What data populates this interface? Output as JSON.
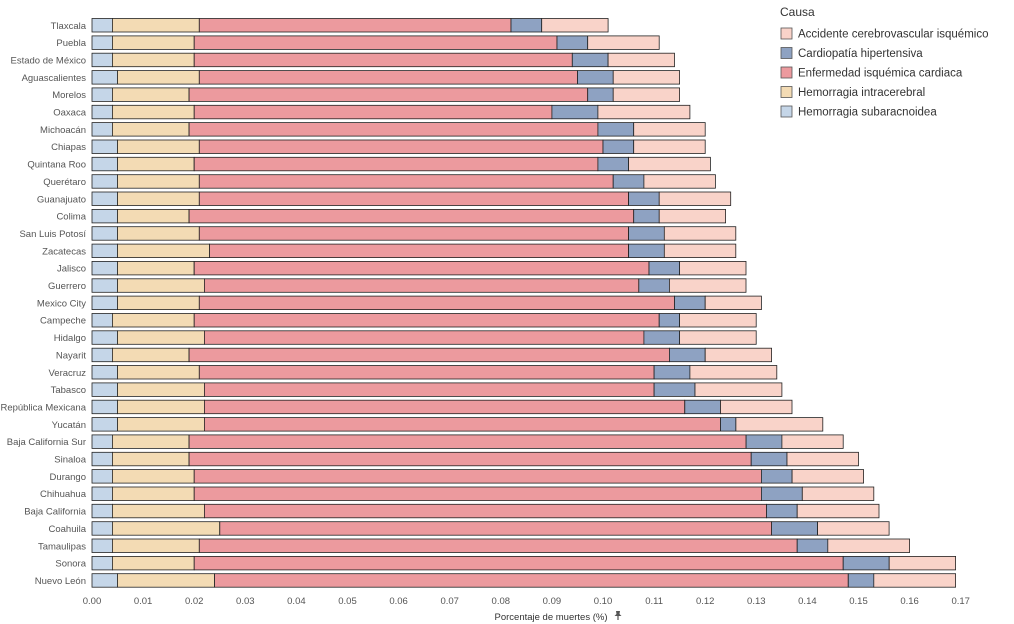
{
  "chart_data": {
    "type": "bar",
    "orientation": "horizontal",
    "stacked": true,
    "xlabel": "Porcentaje de muertes (%)",
    "pin_icon": "pin-icon",
    "xlim": [
      0,
      0.17
    ],
    "xticks": [
      "0.00",
      "0.01",
      "0.02",
      "0.03",
      "0.04",
      "0.05",
      "0.06",
      "0.07",
      "0.08",
      "0.09",
      "0.10",
      "0.11",
      "0.12",
      "0.13",
      "0.14",
      "0.15",
      "0.16",
      "0.17"
    ],
    "legend": {
      "title": "Causa",
      "position": "top-right",
      "items": [
        {
          "name": "Accidente cerebrovascular isquémico",
          "color": "#f9d3c9"
        },
        {
          "name": "Cardiopatía hipertensiva",
          "color": "#8ea2c2"
        },
        {
          "name": "Enfermedad isquémica cardiaca",
          "color": "#ec9a9e"
        },
        {
          "name": "Hemorragia intracerebral",
          "color": "#f3dbb4"
        },
        {
          "name": "Hemorragia subaracnoidea",
          "color": "#c5d6e8"
        }
      ]
    },
    "stack_order": [
      "Hemorragia subaracnoidea",
      "Hemorragia intracerebral",
      "Enfermedad isquémica cardiaca",
      "Cardiopatía hipertensiva",
      "Accidente cerebrovascular isquémico"
    ],
    "categories": [
      "Tlaxcala",
      "Puebla",
      "Estado de México",
      "Aguascalientes",
      "Morelos",
      "Oaxaca",
      "Michoacán",
      "Chiapas",
      "Quintana Roo",
      "Querétaro",
      "Guanajuato",
      "Colima",
      "San Luis Potosí",
      "Zacatecas",
      "Jalisco",
      "Guerrero",
      "Mexico City",
      "Campeche",
      "Hidalgo",
      "Nayarit",
      "Veracruz",
      "Tabasco",
      "República Mexicana",
      "Yucatán",
      "Baja California Sur",
      "Sinaloa",
      "Durango",
      "Chihuahua",
      "Baja California",
      "Coahuila",
      "Tamaulipas",
      "Sonora",
      "Nuevo León"
    ],
    "series": [
      {
        "name": "Hemorragia subaracnoidea",
        "values": [
          0.004,
          0.004,
          0.004,
          0.005,
          0.004,
          0.004,
          0.004,
          0.005,
          0.005,
          0.005,
          0.005,
          0.005,
          0.005,
          0.005,
          0.005,
          0.005,
          0.005,
          0.004,
          0.005,
          0.004,
          0.005,
          0.005,
          0.005,
          0.005,
          0.004,
          0.004,
          0.004,
          0.004,
          0.004,
          0.004,
          0.004,
          0.004,
          0.005
        ]
      },
      {
        "name": "Hemorragia intracerebral",
        "values": [
          0.017,
          0.016,
          0.016,
          0.016,
          0.015,
          0.016,
          0.015,
          0.016,
          0.015,
          0.016,
          0.016,
          0.014,
          0.016,
          0.018,
          0.015,
          0.017,
          0.016,
          0.016,
          0.017,
          0.015,
          0.016,
          0.017,
          0.017,
          0.017,
          0.015,
          0.015,
          0.016,
          0.016,
          0.018,
          0.021,
          0.017,
          0.016,
          0.019
        ]
      },
      {
        "name": "Enfermedad isquémica cardiaca",
        "values": [
          0.061,
          0.071,
          0.074,
          0.074,
          0.078,
          0.07,
          0.08,
          0.079,
          0.079,
          0.081,
          0.084,
          0.087,
          0.084,
          0.082,
          0.089,
          0.085,
          0.093,
          0.091,
          0.086,
          0.094,
          0.089,
          0.088,
          0.094,
          0.101,
          0.109,
          0.11,
          0.111,
          0.111,
          0.11,
          0.108,
          0.117,
          0.127,
          0.124
        ]
      },
      {
        "name": "Cardiopatía hipertensiva",
        "values": [
          0.006,
          0.006,
          0.007,
          0.007,
          0.005,
          0.009,
          0.007,
          0.006,
          0.006,
          0.006,
          0.006,
          0.005,
          0.007,
          0.007,
          0.006,
          0.006,
          0.006,
          0.004,
          0.007,
          0.007,
          0.007,
          0.008,
          0.007,
          0.003,
          0.007,
          0.007,
          0.006,
          0.008,
          0.006,
          0.009,
          0.006,
          0.009,
          0.005
        ]
      },
      {
        "name": "Accidente cerebrovascular isquémico",
        "values": [
          0.013,
          0.014,
          0.013,
          0.013,
          0.013,
          0.018,
          0.014,
          0.014,
          0.016,
          0.014,
          0.014,
          0.013,
          0.014,
          0.014,
          0.013,
          0.015,
          0.011,
          0.015,
          0.015,
          0.013,
          0.017,
          0.017,
          0.014,
          0.017,
          0.012,
          0.014,
          0.014,
          0.014,
          0.016,
          0.014,
          0.016,
          0.013,
          0.016
        ]
      }
    ]
  }
}
